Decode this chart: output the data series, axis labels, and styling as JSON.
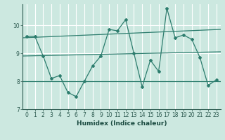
{
  "xlabel": "Humidex (Indice chaleur)",
  "background_color": "#cce8e0",
  "grid_color": "#ffffff",
  "redgrid_color": "#d09090",
  "line_color": "#2d7d6e",
  "x_data": [
    0,
    1,
    2,
    3,
    4,
    5,
    6,
    7,
    8,
    9,
    10,
    11,
    12,
    13,
    14,
    15,
    16,
    17,
    18,
    19,
    20,
    21,
    22,
    23
  ],
  "y_data": [
    9.6,
    9.6,
    8.9,
    8.1,
    8.2,
    7.6,
    7.45,
    8.0,
    8.55,
    8.9,
    9.85,
    9.8,
    10.2,
    9.0,
    7.8,
    8.75,
    8.35,
    10.6,
    9.55,
    9.65,
    9.5,
    8.85,
    7.85,
    8.05
  ],
  "ylim": [
    7,
    10.75
  ],
  "xlim": [
    -0.5,
    23.5
  ],
  "yticks": [
    7,
    8,
    9,
    10
  ],
  "xticks": [
    0,
    1,
    2,
    3,
    4,
    5,
    6,
    7,
    8,
    9,
    10,
    11,
    12,
    13,
    14,
    15,
    16,
    17,
    18,
    19,
    20,
    21,
    22,
    23
  ],
  "trend1_start": 9.55,
  "trend1_end": 9.85,
  "trend2_start": 8.9,
  "trend2_end": 9.05,
  "hline_y": 8.0
}
